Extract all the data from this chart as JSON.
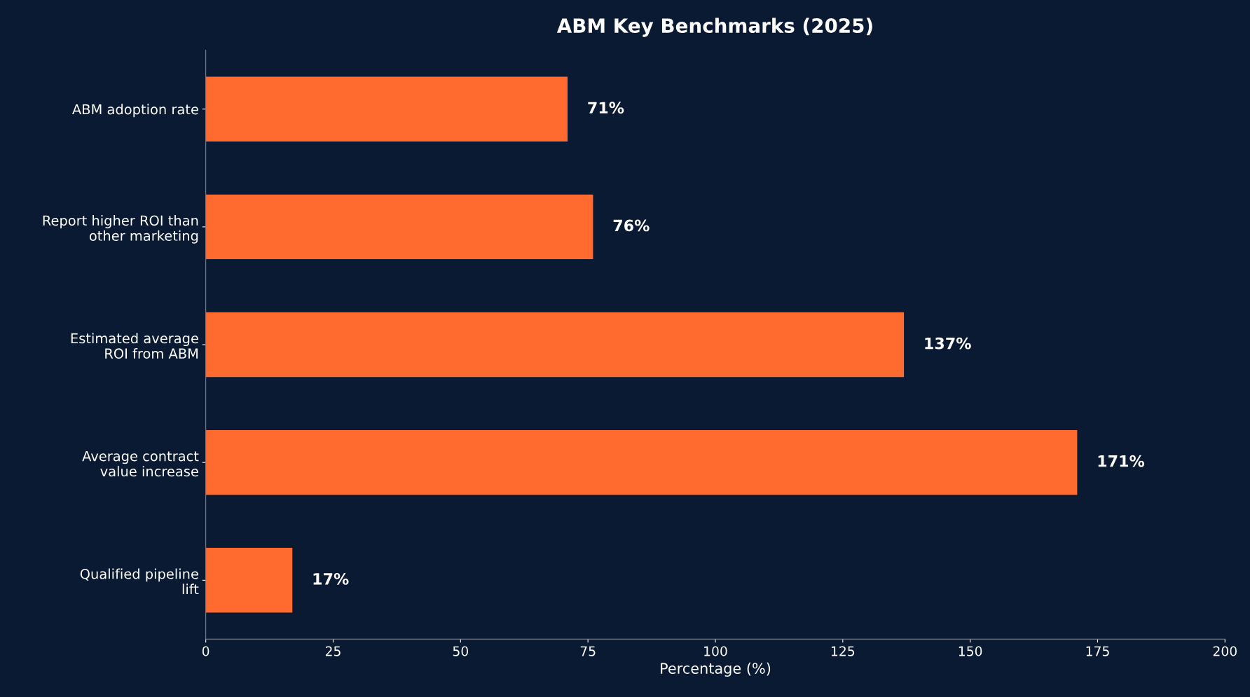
{
  "chart_data": {
    "type": "bar",
    "orientation": "horizontal",
    "title": "ABM Key Benchmarks (2025)",
    "xlabel": "Percentage (%)",
    "categories": [
      "ABM adoption rate",
      "Report higher ROI than\nother marketing",
      "Estimated average\nROI from ABM",
      "Average contract\nvalue increase",
      "Qualified pipeline\nlift"
    ],
    "values": [
      71,
      76,
      137,
      171,
      17
    ],
    "value_labels": [
      "71%",
      "76%",
      "137%",
      "171%",
      "17%"
    ],
    "color": "#ff6b2f",
    "xlim": [
      0,
      200
    ],
    "xticks": [
      0,
      25,
      50,
      75,
      100,
      125,
      150,
      175,
      200
    ],
    "grid": false,
    "legend": false
  }
}
